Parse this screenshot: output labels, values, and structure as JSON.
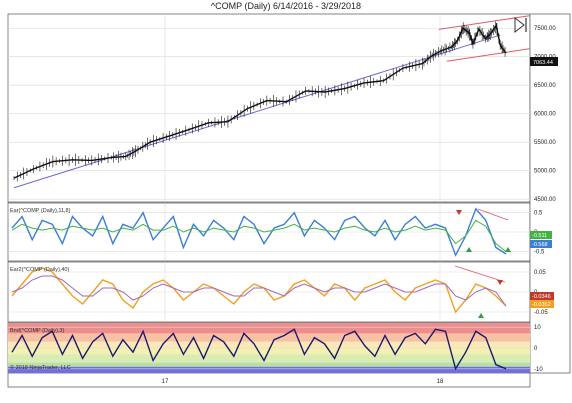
{
  "title": "^COMP (Daily)  6/14/2016 - 3/29/2018",
  "colors": {
    "price": "#111111",
    "trend": "#6b6bd6",
    "channel": "#e05a6a",
    "blue": "#3b7fd4",
    "green": "#43b243",
    "orange": "#f0a020",
    "purple": "#a06ab8",
    "navy": "#1b1b6b",
    "marker_red": "#c0392b",
    "marker_green": "#2e9e48"
  },
  "icons": {
    "toolbar": "skip-to-end-icon"
  },
  "chart_data": [
    {
      "type": "candlestick",
      "title": "^COMP (Daily)  6/14/2016 - 3/29/2018",
      "y_ticks": [
        "4500.00",
        "5000.00",
        "5500.00",
        "6000.00",
        "6500.00",
        "7000.00",
        "7500.00"
      ],
      "ylim": [
        4450,
        7750
      ],
      "x_ticks": [
        "17",
        "18"
      ],
      "last_price_label": "7063.44",
      "close_points": [
        [
          0,
          4870
        ],
        [
          20,
          5030
        ],
        [
          40,
          5160
        ],
        [
          60,
          5190
        ],
        [
          80,
          5180
        ],
        [
          100,
          5230
        ],
        [
          115,
          5250
        ],
        [
          125,
          5340
        ],
        [
          140,
          5500
        ],
        [
          160,
          5610
        ],
        [
          180,
          5720
        ],
        [
          200,
          5840
        ],
        [
          220,
          5860
        ],
        [
          240,
          6090
        ],
        [
          260,
          6230
        ],
        [
          280,
          6210
        ],
        [
          300,
          6400
        ],
        [
          320,
          6380
        ],
        [
          340,
          6440
        ],
        [
          360,
          6540
        ],
        [
          380,
          6580
        ],
        [
          400,
          6800
        ],
        [
          420,
          6880
        ],
        [
          430,
          7020
        ],
        [
          440,
          7110
        ],
        [
          450,
          7170
        ],
        [
          456,
          7280
        ],
        [
          462,
          7500
        ],
        [
          468,
          7420
        ],
        [
          472,
          7230
        ],
        [
          478,
          7480
        ],
        [
          485,
          7320
        ],
        [
          490,
          7400
        ],
        [
          496,
          7540
        ],
        [
          500,
          7210
        ],
        [
          506,
          7063
        ]
      ],
      "trendline": [
        [
          0,
          4700
        ],
        [
          500,
          7380
        ]
      ],
      "channel_upper": [
        [
          437,
          7480
        ],
        [
          530,
          7720
        ]
      ],
      "channel_lower": [
        [
          445,
          6920
        ],
        [
          530,
          7140
        ]
      ]
    },
    {
      "type": "line",
      "label": "Ear(^COMP (Daily),11,8)",
      "y_ticks": [
        "0.5",
        "0",
        "-0.5"
      ],
      "ylim": [
        -0.75,
        0.75
      ],
      "value_labels": [
        "-0.511",
        "-0.568"
      ],
      "series": [
        {
          "color": "#3b7fd4",
          "values": [
            0.1,
            0.4,
            -0.2,
            0.3,
            0.2,
            -0.3,
            0.4,
            0.1,
            -0.1,
            0.4,
            -0.3,
            0.2,
            0.1,
            0.5,
            -0.2,
            0.1,
            0.4,
            -0.4,
            0.2,
            -0.1,
            0.3,
            0.1,
            -0.2,
            0.4,
            0.2,
            -0.3,
            0.1,
            0.2,
            0.5,
            -0.1,
            0.3,
            0.1,
            -0.2,
            0.3,
            0.4,
            0.1,
            -0.1,
            0.3,
            -0.2,
            0.2,
            0.4,
            0.1,
            0.2,
            0.1,
            -0.6,
            -0.1,
            0.6,
            0.3,
            -0.4,
            -0.57
          ]
        },
        {
          "color": "#43b243",
          "values": [
            0.05,
            0.2,
            0.1,
            0.05,
            0.1,
            0.05,
            0.15,
            0.1,
            0.05,
            0.1,
            0.0,
            0.1,
            0.05,
            0.2,
            0.05,
            0.05,
            0.15,
            0.0,
            0.1,
            0.0,
            0.1,
            0.05,
            0.0,
            0.15,
            0.1,
            0.0,
            0.05,
            0.1,
            0.2,
            0.05,
            0.1,
            0.05,
            0.0,
            0.1,
            0.15,
            0.05,
            0.0,
            0.1,
            0.0,
            0.05,
            0.15,
            0.05,
            0.1,
            0.05,
            -0.3,
            -0.1,
            0.3,
            0.15,
            -0.3,
            -0.51
          ]
        }
      ]
    },
    {
      "type": "line",
      "label": "Ear2(^COMP (Daily),40)",
      "y_ticks": [
        "0.05",
        "0",
        "-0.05"
      ],
      "ylim": [
        -0.075,
        0.075
      ],
      "value_labels": [
        "-0.0346",
        "-0.0352"
      ],
      "series": [
        {
          "color": "#f0a020",
          "values": [
            -0.01,
            0.02,
            0.05,
            0.06,
            0.05,
            0.02,
            -0.01,
            -0.03,
            0.0,
            0.03,
            0.02,
            -0.02,
            -0.04,
            0.0,
            0.02,
            0.03,
            0.01,
            -0.02,
            0.0,
            0.02,
            0.01,
            -0.01,
            -0.03,
            0.0,
            0.02,
            0.01,
            -0.02,
            -0.01,
            0.02,
            0.03,
            0.01,
            -0.01,
            0.02,
            0.01,
            -0.02,
            0.01,
            0.02,
            0.03,
            0.0,
            -0.02,
            0.01,
            0.02,
            0.03,
            0.02,
            -0.05,
            -0.02,
            0.02,
            0.01,
            -0.01,
            -0.035
          ]
        },
        {
          "color": "#a06ab8",
          "values": [
            0.0,
            0.01,
            0.03,
            0.04,
            0.04,
            0.03,
            0.01,
            -0.01,
            -0.01,
            0.01,
            0.01,
            0.0,
            -0.02,
            -0.01,
            0.01,
            0.02,
            0.01,
            0.0,
            0.0,
            0.01,
            0.01,
            0.0,
            -0.01,
            -0.01,
            0.01,
            0.01,
            0.0,
            -0.01,
            0.01,
            0.02,
            0.01,
            0.0,
            0.01,
            0.01,
            0.0,
            0.0,
            0.01,
            0.02,
            0.01,
            0.0,
            0.0,
            0.01,
            0.02,
            0.02,
            -0.01,
            -0.02,
            0.0,
            0.01,
            0.0,
            -0.035
          ]
        }
      ]
    },
    {
      "type": "line",
      "label": "Bnd(^COMP (Daily),3)",
      "y_ticks": [
        "10",
        "0",
        "-10"
      ],
      "ylim": [
        -12,
        12
      ],
      "copyright": "© 2018 NinjaTrader, LLC",
      "bands": [
        {
          "from": 12,
          "to": 7,
          "color": "#ef8d8d"
        },
        {
          "from": 7,
          "to": 3,
          "color": "#f7c1a4"
        },
        {
          "from": 3,
          "to": 0,
          "color": "#fbe8b8"
        },
        {
          "from": 0,
          "to": -3,
          "color": "#f4f0b0"
        },
        {
          "from": -3,
          "to": -7,
          "color": "#d9ecb1"
        },
        {
          "from": -7,
          "to": -9,
          "color": "#b9dfa5"
        },
        {
          "from": -9,
          "to": -12,
          "color": "#6f6fe0"
        }
      ],
      "series": [
        {
          "color": "#1b1b6b",
          "values": [
            -2,
            6,
            -4,
            5,
            8,
            -3,
            6,
            -5,
            3,
            7,
            -4,
            4,
            -2,
            8,
            -6,
            2,
            7,
            -3,
            5,
            -5,
            6,
            3,
            -4,
            7,
            2,
            -6,
            4,
            6,
            9,
            -3,
            5,
            2,
            -5,
            6,
            8,
            1,
            -4,
            6,
            -3,
            5,
            7,
            2,
            9,
            8,
            -10,
            -2,
            8,
            5,
            -8,
            -10
          ]
        }
      ]
    }
  ]
}
